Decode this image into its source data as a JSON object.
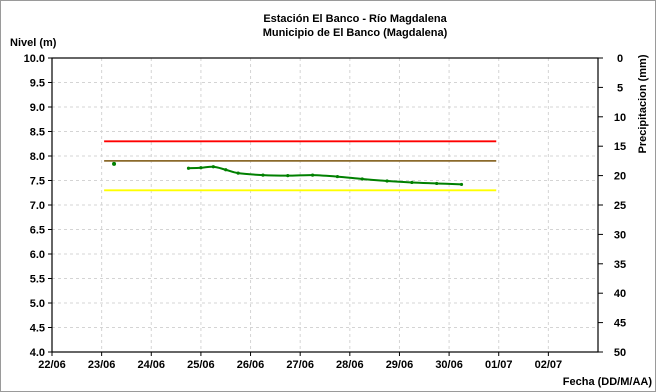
{
  "chart_data": {
    "type": "line",
    "title": "Estación El Banco - Río Magdalena",
    "subtitle": "Municipio de El Banco (Magdalena)",
    "ylabel_left": "Nivel (m)",
    "ylabel_right": "Precipitacion (mm)",
    "xlabel": "Fecha (DD/M/AA)",
    "xlim": [
      0,
      11
    ],
    "x_ticks": [
      {
        "x": 0,
        "label": "22/06"
      },
      {
        "x": 1,
        "label": "23/06"
      },
      {
        "x": 2,
        "label": "24/06"
      },
      {
        "x": 3,
        "label": "25/06"
      },
      {
        "x": 4,
        "label": "26/06"
      },
      {
        "x": 5,
        "label": "27/06"
      },
      {
        "x": 6,
        "label": "28/06"
      },
      {
        "x": 7,
        "label": "29/06"
      },
      {
        "x": 8,
        "label": "30/06"
      },
      {
        "x": 9,
        "label": "01/07"
      },
      {
        "x": 10,
        "label": "02/07"
      }
    ],
    "ylim_left": [
      4.0,
      10.0
    ],
    "y_left_ticks": [
      "4.0",
      "4.5",
      "5.0",
      "5.5",
      "6.0",
      "6.5",
      "7.0",
      "7.5",
      "8.0",
      "8.5",
      "9.0",
      "9.5",
      "10.0"
    ],
    "ylim_right": [
      0,
      50
    ],
    "y_right_ticks": [
      "0",
      "5",
      "10",
      "15",
      "20",
      "25",
      "30",
      "35",
      "40",
      "45",
      "50"
    ],
    "grid": true,
    "thresholds": [
      {
        "value": 8.3,
        "color": "#ff0000",
        "x_range": [
          1.05,
          8.95
        ]
      },
      {
        "value": 7.9,
        "color": "#8b6a2b",
        "x_range": [
          1.05,
          8.95
        ]
      },
      {
        "value": 7.3,
        "color": "#ffff00",
        "x_range": [
          1.05,
          8.95
        ]
      }
    ],
    "series": [
      {
        "color": "#008000",
        "isolated_points": [
          {
            "x": 1.25,
            "y": 7.84
          }
        ],
        "points": [
          {
            "x": 2.75,
            "y": 7.75
          },
          {
            "x": 3.0,
            "y": 7.76
          },
          {
            "x": 3.25,
            "y": 7.78
          },
          {
            "x": 3.5,
            "y": 7.72
          },
          {
            "x": 3.75,
            "y": 7.65
          },
          {
            "x": 4.25,
            "y": 7.61
          },
          {
            "x": 4.75,
            "y": 7.6
          },
          {
            "x": 5.25,
            "y": 7.61
          },
          {
            "x": 5.75,
            "y": 7.58
          },
          {
            "x": 6.25,
            "y": 7.53
          },
          {
            "x": 6.75,
            "y": 7.49
          },
          {
            "x": 7.25,
            "y": 7.46
          },
          {
            "x": 7.75,
            "y": 7.44
          },
          {
            "x": 8.25,
            "y": 7.42
          }
        ]
      }
    ]
  }
}
